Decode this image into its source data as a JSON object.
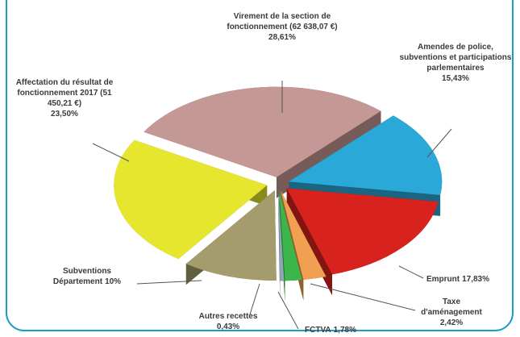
{
  "chart_data": {
    "type": "pie",
    "categories": [
      "Virement de la section de fonctionnement (62 638,07 €)",
      "Amendes de police, subventions et participations parlementaires",
      "Emprunt",
      "Taxe d'aménagement",
      "FCTVA",
      "Autres recettes",
      "Subventions Département",
      "Affectation du résultat de fonctionnement 2017 (51 450,21 €)"
    ],
    "values": [
      28.61,
      15.43,
      17.83,
      2.42,
      1.78,
      0.43,
      10,
      23.5
    ],
    "value_labels": [
      "28,61%",
      "15,43%",
      "17,83%",
      "2,42%",
      "1,78%",
      "0,43%",
      "10%",
      "23,50%"
    ],
    "colors": [
      "#c49894",
      "#2aa8d8",
      "#d8221e",
      "#f0a050",
      "#3cb54a",
      "#8fa4b4",
      "#a49c6c",
      "#e6e62e"
    ]
  }
}
